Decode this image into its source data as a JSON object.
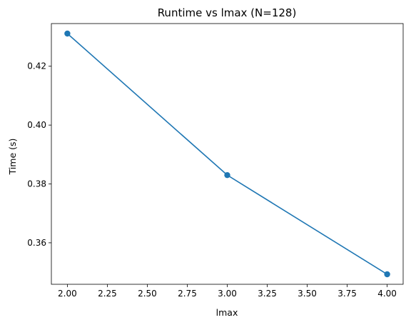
{
  "chart_data": {
    "type": "line",
    "title": "Runtime vs lmax  (N=128)",
    "xlabel": "lmax",
    "ylabel": "Time (s)",
    "x": [
      2.0,
      3.0,
      4.0
    ],
    "series": [
      {
        "values": [
          0.4311,
          0.383,
          0.3493
        ]
      }
    ],
    "xlim": [
      1.9,
      4.1
    ],
    "ylim": [
      0.3459,
      0.4345
    ],
    "xticks": [
      "2.00",
      "2.25",
      "2.50",
      "2.75",
      "3.00",
      "3.25",
      "3.50",
      "3.75",
      "4.00"
    ],
    "yticks": [
      "0.36",
      "0.38",
      "0.40",
      "0.42"
    ],
    "grid": false,
    "colors": {
      "line": "#1f77b4"
    }
  }
}
